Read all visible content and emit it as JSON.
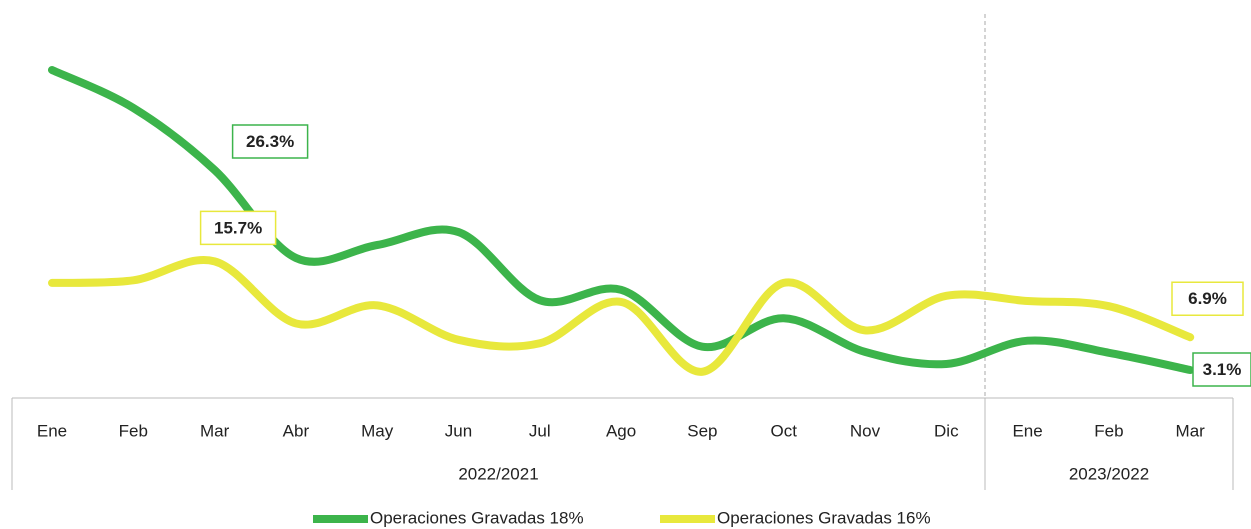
{
  "chart_data": {
    "type": "line",
    "category_groups": [
      {
        "label": "2022/2021",
        "categories": [
          "Ene",
          "Feb",
          "Mar",
          "Abr",
          "May",
          "Jun",
          "Jul",
          "Ago",
          "Sep",
          "Oct",
          "Nov",
          "Dic"
        ]
      },
      {
        "label": "2023/2022",
        "categories": [
          "Ene",
          "Feb",
          "Mar"
        ]
      }
    ],
    "series": [
      {
        "name": "Operaciones Gravadas 18%",
        "color": "#3cb44b",
        "values": [
          37.9,
          33.5,
          26.3,
          16.1,
          17.6,
          19.1,
          11.2,
          12.4,
          5.8,
          9.1,
          5.2,
          3.8,
          6.5,
          5.1,
          3.1
        ],
        "value_labels": [
          null,
          null,
          "26.3%",
          null,
          null,
          null,
          null,
          null,
          null,
          null,
          null,
          null,
          null,
          null,
          "3.1%"
        ]
      },
      {
        "name": "Operaciones Gravadas 16%",
        "color": "#e8e83c",
        "values": [
          13.2,
          13.5,
          15.7,
          8.5,
          10.6,
          6.6,
          6.2,
          11.0,
          2.9,
          13.2,
          7.7,
          11.7,
          11.1,
          10.5,
          6.9
        ],
        "value_labels": [
          null,
          null,
          "15.7%",
          null,
          null,
          null,
          null,
          null,
          null,
          null,
          null,
          null,
          null,
          null,
          "6.9%"
        ]
      }
    ],
    "legend": "bottom"
  }
}
